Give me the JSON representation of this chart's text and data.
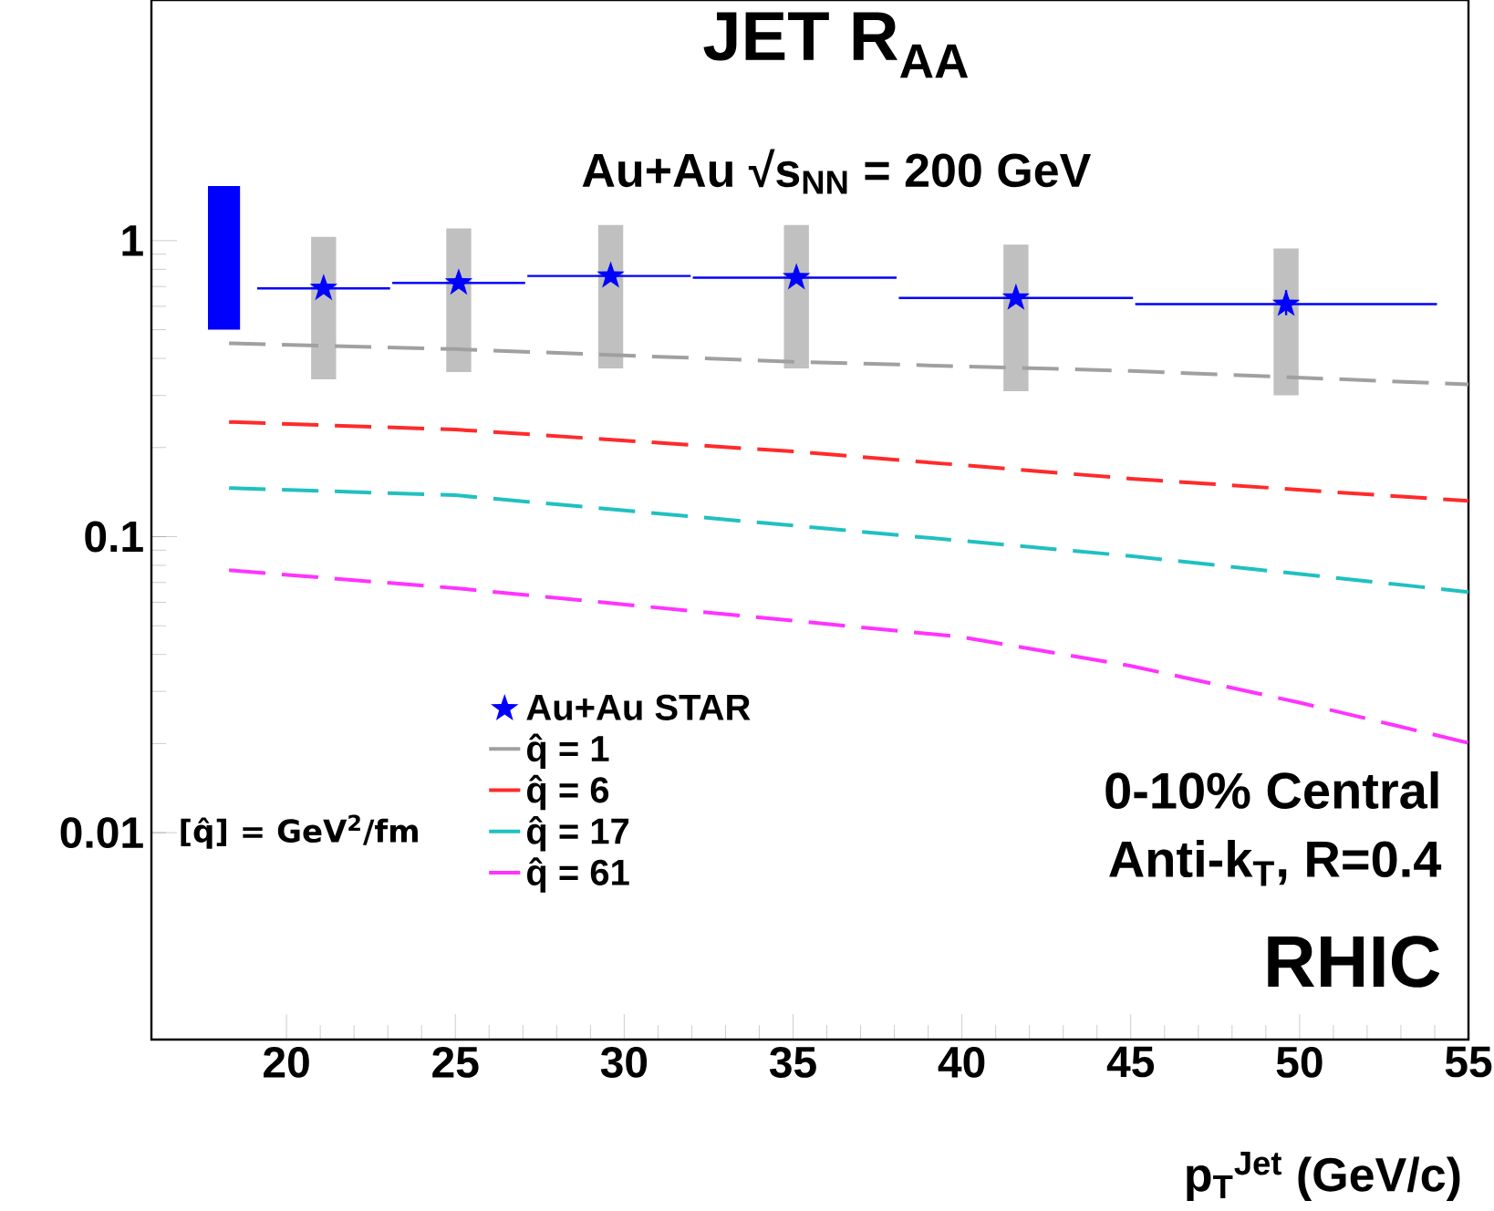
{
  "chart_data": {
    "type": "scatter",
    "title": "JET R$_{AA}$",
    "subtitle": "Au+Au √s$_{NN}$ = 200 GeV",
    "xlabel": "p$_{T}$$^{Jet}$ (GeV/c)",
    "legend_title": "[q̂] = GeV$^{2}$/fm",
    "annotations": [
      "0-10% Central",
      "Anti-k$_{T}$, R=0.4",
      "RHIC"
    ],
    "xlim": [
      16,
      55
    ],
    "ylim": [
      0.002,
      6.5
    ],
    "log": "y",
    "xticks": [
      20,
      25,
      30,
      35,
      40,
      45,
      50,
      55
    ],
    "yticks": [
      0.01,
      0.1,
      1
    ],
    "legend": "bottom left",
    "series": [
      {
        "type": "bar",
        "color": "#c0c0c0",
        "x": [
          21.1,
          25.1,
          29.6,
          35.1,
          41.6,
          49.6
        ],
        "base": [
          0.34,
          0.36,
          0.37,
          0.37,
          0.31,
          0.3
        ],
        "values": [
          0.69,
          0.74,
          0.76,
          0.76,
          0.66,
          0.64
        ]
      },
      {
        "type": "bar",
        "color": "#0000ff",
        "x": [
          18.15
        ],
        "base": [
          0.5
        ],
        "values": [
          1.03
        ]
      },
      {
        "name": "Au+Au STAR",
        "color": "#0000ff",
        "marker": "star",
        "x": [
          21.1,
          25.1,
          29.6,
          35.1,
          41.6,
          49.6
        ],
        "values": [
          0.69,
          0.72,
          0.76,
          0.75,
          0.64,
          0.61
        ],
        "xerrors": [
          [
            19.1,
            23.1
          ],
          [
            23.1,
            27.1
          ],
          [
            27.1,
            32.0
          ],
          [
            32.0,
            38.1
          ],
          [
            38.1,
            45.1
          ],
          [
            45.1,
            54.1
          ]
        ],
        "errors": [
          null,
          null,
          null,
          null,
          null,
          [
            0.56,
            0.68
          ]
        ]
      },
      {
        "type": "line",
        "name": "q̂ = 1",
        "color": "#a0a0a0",
        "line_style": "dashed",
        "x": [
          18.3,
          25,
          35,
          45,
          55
        ],
        "values": [
          0.45,
          0.43,
          0.39,
          0.363,
          0.327
        ]
      },
      {
        "type": "line",
        "name": "q̂ = 6",
        "color": "#ff2a2a",
        "line_style": "dashed",
        "x": [
          18.3,
          25,
          35,
          45,
          55
        ],
        "values": [
          0.244,
          0.23,
          0.194,
          0.157,
          0.132
        ]
      },
      {
        "type": "line",
        "name": "q̂ = 17",
        "color": "#20c0c0",
        "line_style": "dashed",
        "x": [
          18.3,
          25,
          35,
          45,
          55
        ],
        "values": [
          0.146,
          0.138,
          0.109,
          0.086,
          0.065
        ]
      },
      {
        "type": "line",
        "name": "q̂ = 61",
        "color": "#ff33ff",
        "line_style": "dashed",
        "x": [
          18.3,
          25,
          35,
          40,
          45,
          50,
          55
        ],
        "values": [
          0.077,
          0.067,
          0.052,
          0.0458,
          0.0366,
          0.0275,
          0.0201
        ]
      }
    ]
  }
}
